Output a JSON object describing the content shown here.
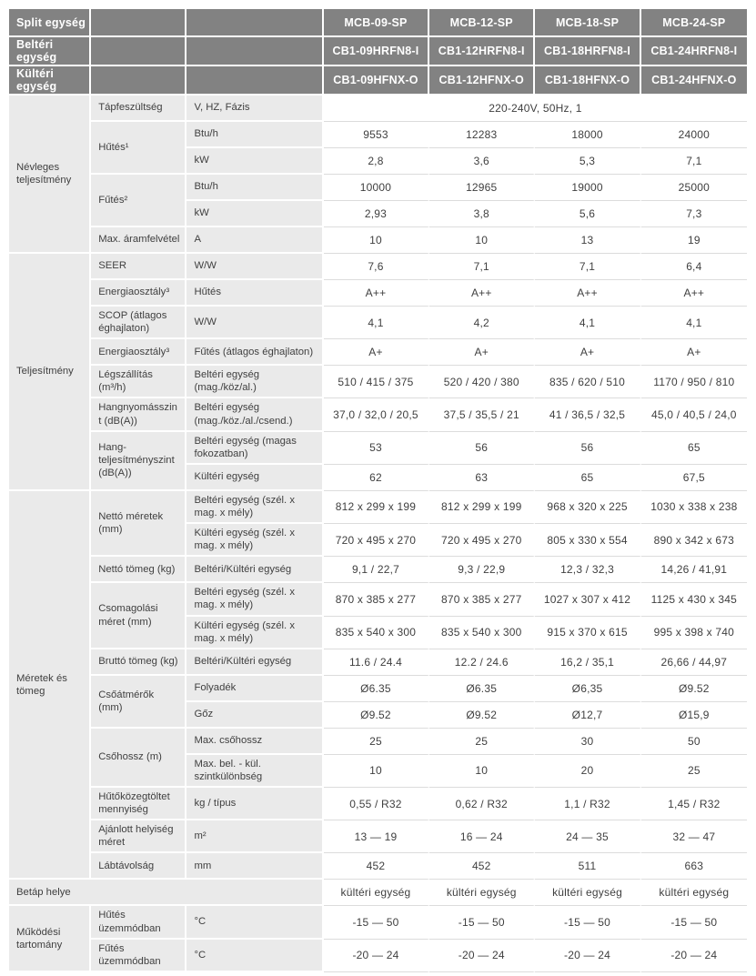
{
  "colors": {
    "header_bg": "#828282",
    "header_text": "#ffffff",
    "label_bg": "#eaeaea",
    "body_text": "#3f3f3f",
    "row_separator": "#dcdcdc"
  },
  "table": {
    "header_rows": [
      {
        "label": "Split egység",
        "values": [
          "MCB-09-SP",
          "MCB-12-SP",
          "MCB-18-SP",
          "MCB-24-SP"
        ]
      },
      {
        "label": "Beltéri egység",
        "values": [
          "CB1-09HRFN8-I",
          "CB1-12HRFN8-I",
          "CB1-18HRFN8-I",
          "CB1-24HRFN8-I"
        ]
      },
      {
        "label": "Kültéri egység",
        "values": [
          "CB1-09HFNX-O",
          "CB1-12HFNX-O",
          "CB1-18HFNX-O",
          "CB1-24HFNX-O"
        ]
      }
    ],
    "groups": [
      {
        "label": "Névleges teljesítmény"
      },
      {
        "label": "Teljesítmény"
      },
      {
        "label": "Méretek és tömeg"
      },
      {
        "label": "Betáp helye"
      },
      {
        "label": "Működési tartomány"
      }
    ],
    "rows": [
      {
        "sub1": "Tápfeszültség",
        "sub2": "V, HZ, Fázis",
        "span_value": "220-240V, 50Hz, 1"
      },
      {
        "sub1": "Hűtés¹",
        "sub2": "Btu/h",
        "values": [
          "9553",
          "12283",
          "18000",
          "24000"
        ]
      },
      {
        "sub2": "kW",
        "values": [
          "2,8",
          "3,6",
          "5,3",
          "7,1"
        ]
      },
      {
        "sub1": "Fűtés²",
        "sub2": "Btu/h",
        "values": [
          "10000",
          "12965",
          "19000",
          "25000"
        ]
      },
      {
        "sub2": "kW",
        "values": [
          "2,93",
          "3,8",
          "5,6",
          "7,3"
        ]
      },
      {
        "sub1": "Max. áramfelvétel",
        "sub2": "A",
        "values": [
          "10",
          "10",
          "13",
          "19"
        ]
      },
      {
        "sub1": "SEER",
        "sub2": "W/W",
        "values": [
          "7,6",
          "7,1",
          "7,1",
          "6,4"
        ]
      },
      {
        "sub1": "Energiaosztály³",
        "sub2": "Hűtés",
        "values": [
          "A++",
          "A++",
          "A++",
          "A++"
        ]
      },
      {
        "sub1": "SCOP (átlagos éghajlaton)",
        "sub2": "W/W",
        "values": [
          "4,1",
          "4,2",
          "4,1",
          "4,1"
        ]
      },
      {
        "sub1": "Energiaosztály³",
        "sub2": "Fűtés (átlagos éghajlaton)",
        "values": [
          "A+",
          "A+",
          "A+",
          "A+"
        ]
      },
      {
        "sub1": "Légszállítás (m³/h)",
        "sub2": "Beltéri egység (mag./köz/al.)",
        "values": [
          "510 / 415 / 375",
          "520 / 420 / 380",
          "835 / 620 / 510",
          "1170 / 950 / 810"
        ]
      },
      {
        "sub1": "Hangnyomásszint (dB(A))",
        "sub2": "Beltéri egység (mag./köz./al./csend.)",
        "values": [
          "37,0 / 32,0 / 20,5",
          "37,5 / 35,5 / 21",
          "41 / 36,5 / 32,5",
          "45,0 / 40,5 / 24,0"
        ]
      },
      {
        "sub1": "Hang-teljesítményszint (dB(A))",
        "sub2": "Beltéri egység (magas fokozatban)",
        "values": [
          "53",
          "56",
          "56",
          "65"
        ]
      },
      {
        "sub2": "Kültéri egység",
        "values": [
          "62",
          "63",
          "65",
          "67,5"
        ]
      },
      {
        "sub1": "Nettó méretek (mm)",
        "sub2": "Beltéri egység (szél. x mag. x mély)",
        "values": [
          "812 x 299 x 199",
          "812 x 299 x 199",
          "968 x 320 x 225",
          "1030 x 338 x 238"
        ]
      },
      {
        "sub2": "Kültéri egység (szél. x mag. x mély)",
        "values": [
          "720 x 495 x 270",
          "720 x 495 x 270",
          "805 x 330 x 554",
          "890 x 342 x 673"
        ]
      },
      {
        "sub1": "Nettó tömeg (kg)",
        "sub2": "Beltéri/Kültéri egység",
        "values": [
          "9,1 / 22,7",
          "9,3 / 22,9",
          "12,3 / 32,3",
          "14,26 / 41,91"
        ]
      },
      {
        "sub1": "Csomagolási méret (mm)",
        "sub2": "Beltéri egység (szél. x mag. x mély)",
        "values": [
          "870 x 385 x 277",
          "870 x 385 x 277",
          "1027 x 307 x 412",
          "1125 x 430 x 345"
        ]
      },
      {
        "sub2": "Kültéri egység (szél. x mag. x mély)",
        "values": [
          "835 x 540 x 300",
          "835 x 540 x 300",
          "915 x 370 x 615",
          "995 x 398 x 740"
        ]
      },
      {
        "sub1": "Bruttó tömeg (kg)",
        "sub2": "Beltéri/Kültéri egység",
        "values": [
          "11.6 / 24.4",
          "12.2 / 24.6",
          "16,2 / 35,1",
          "26,66 / 44,97"
        ]
      },
      {
        "sub1": "Csőátmérők (mm)",
        "sub2": "Folyadék",
        "values": [
          "Ø6.35",
          "Ø6.35",
          "Ø6,35",
          "Ø9.52"
        ]
      },
      {
        "sub2": "Gőz",
        "values": [
          "Ø9.52",
          "Ø9.52",
          "Ø12,7",
          "Ø15,9"
        ]
      },
      {
        "sub1": "Csőhossz (m)",
        "sub2": "Max. csőhossz",
        "values": [
          "25",
          "25",
          "30",
          "50"
        ]
      },
      {
        "sub2": "Max. bel. - kül. szintkülönbség",
        "values": [
          "10",
          "10",
          "20",
          "25"
        ]
      },
      {
        "sub1": "Hűtőközegtöltet mennyiség",
        "sub2": "kg / típus",
        "values": [
          "0,55 / R32",
          "0,62 / R32",
          "1,1 / R32",
          "1,45 / R32"
        ]
      },
      {
        "sub1": "Ajánlott helyiség méret",
        "sub2": "m²",
        "values": [
          "13 — 19",
          "16 — 24",
          "24 — 35",
          "32 — 47"
        ]
      },
      {
        "sub1": "Lábtávolság",
        "sub2": "mm",
        "values": [
          "452",
          "452",
          "511",
          "663"
        ]
      },
      {
        "values": [
          "kültéri egység",
          "kültéri egység",
          "kültéri egység",
          "kültéri egység"
        ]
      },
      {
        "sub1": "Hűtés üzemmódban",
        "sub2": "°C",
        "values": [
          "-15 — 50",
          "-15 — 50",
          "-15 — 50",
          "-15 — 50"
        ]
      },
      {
        "sub1": "Fűtés üzemmódban",
        "sub2": "°C",
        "values": [
          "-20 — 24",
          "-20 — 24",
          "-20 — 24",
          "-20 — 24"
        ]
      }
    ]
  }
}
